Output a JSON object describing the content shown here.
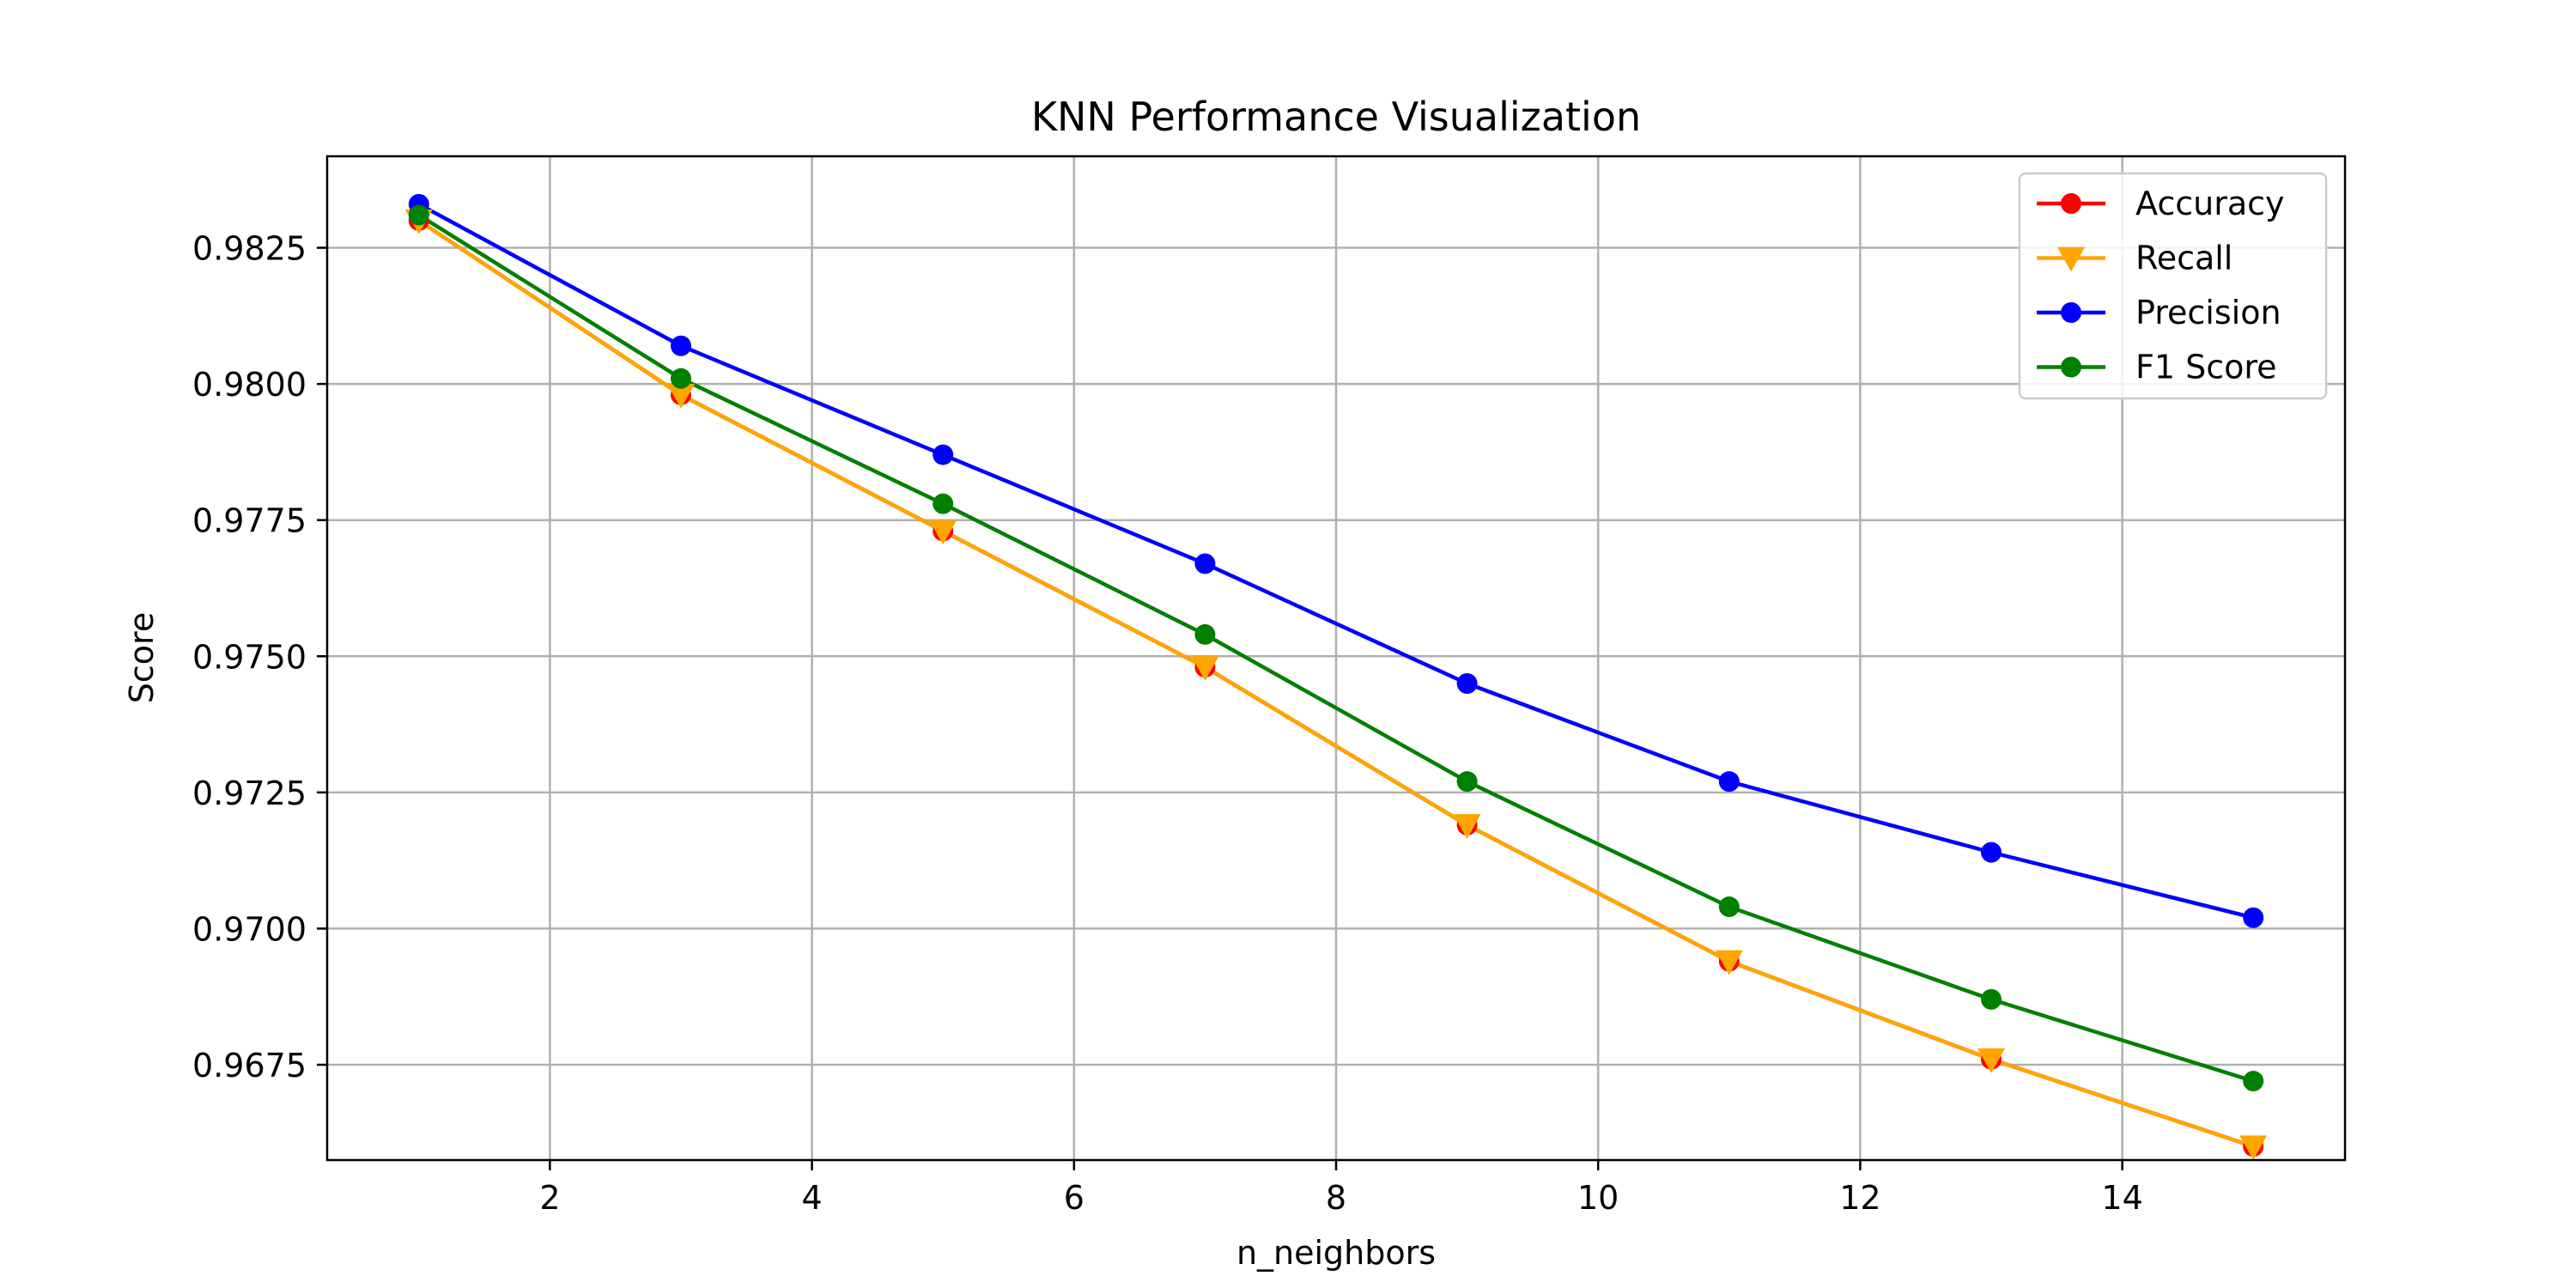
{
  "chart_data": {
    "type": "line",
    "title": "KNN Performance Visualization",
    "xlabel": "n_neighbors",
    "ylabel": "Score",
    "xlim": [
      0.3,
      15.7
    ],
    "ylim": [
      0.96575,
      0.98418
    ],
    "x_ticks": [
      2,
      4,
      6,
      8,
      10,
      12,
      14
    ],
    "y_ticks": [
      0.9675,
      0.97,
      0.9725,
      0.975,
      0.9775,
      0.98,
      0.9825
    ],
    "y_tick_labels": [
      "0.9675",
      "0.9700",
      "0.9725",
      "0.9750",
      "0.9775",
      "0.9800",
      "0.9825"
    ],
    "grid": true,
    "legend_position": "top-right",
    "x": [
      1,
      3,
      5,
      7,
      9,
      11,
      13,
      15
    ],
    "series": [
      {
        "name": "Accuracy",
        "color": "#ff0000",
        "marker": "circle",
        "values": [
          0.983,
          0.9798,
          0.9773,
          0.9748,
          0.9719,
          0.9694,
          0.9676,
          0.966
        ]
      },
      {
        "name": "Recall",
        "color": "#ffa500",
        "marker": "triangle-down",
        "values": [
          0.983,
          0.9798,
          0.9773,
          0.9748,
          0.9719,
          0.9694,
          0.9676,
          0.966
        ]
      },
      {
        "name": "Precision",
        "color": "#0000ff",
        "marker": "circle",
        "values": [
          0.9833,
          0.9807,
          0.9787,
          0.9767,
          0.9745,
          0.9727,
          0.9714,
          0.9702
        ]
      },
      {
        "name": "F1 Score",
        "color": "#008000",
        "marker": "circle",
        "values": [
          0.9831,
          0.9801,
          0.9778,
          0.9754,
          0.9727,
          0.9704,
          0.9687,
          0.9672
        ]
      }
    ]
  }
}
